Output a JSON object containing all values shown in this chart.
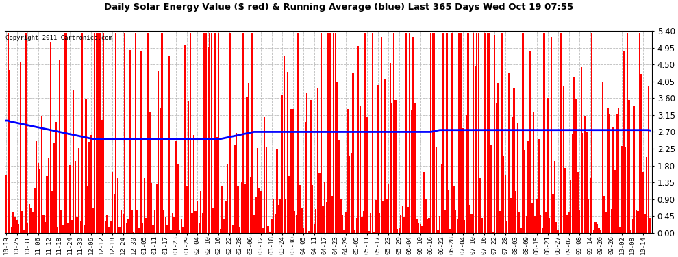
{
  "title": "Daily Solar Energy Value ($ red) & Running Average (blue) Last 365 Days Wed Oct 19 07:55",
  "copyright": "Copyright 2011 Cartronics.com",
  "bar_color": "#ff0000",
  "avg_color": "#0000ff",
  "background_color": "#ffffff",
  "plot_bg_color": "#ffffff",
  "ylim": [
    0.0,
    5.4
  ],
  "yticks": [
    0.0,
    0.45,
    0.9,
    1.35,
    1.8,
    2.25,
    2.7,
    3.15,
    3.6,
    4.05,
    4.5,
    4.95,
    5.4
  ],
  "n_days": 365,
  "seed": 42,
  "x_labels": [
    "10-19",
    "10-25",
    "10-31",
    "11-06",
    "11-12",
    "11-18",
    "11-24",
    "11-30",
    "12-06",
    "12-12",
    "12-18",
    "12-24",
    "12-30",
    "01-05",
    "01-11",
    "01-17",
    "01-23",
    "01-29",
    "02-04",
    "02-10",
    "02-16",
    "02-22",
    "02-28",
    "03-06",
    "03-12",
    "03-18",
    "03-24",
    "03-30",
    "04-05",
    "04-11",
    "04-17",
    "04-23",
    "04-29",
    "05-05",
    "05-11",
    "05-17",
    "05-23",
    "05-29",
    "06-04",
    "06-10",
    "06-16",
    "06-22",
    "06-28",
    "07-04",
    "07-10",
    "07-16",
    "07-22",
    "07-28",
    "08-03",
    "08-09",
    "08-15",
    "08-21",
    "08-27",
    "09-02",
    "09-08",
    "09-14",
    "09-20",
    "09-26",
    "10-02",
    "10-08",
    "10-14"
  ],
  "avg_values": [
    3.0,
    3.0,
    2.98,
    2.97,
    2.96,
    2.95,
    2.94,
    2.93,
    2.92,
    2.91,
    2.9,
    2.89,
    2.88,
    2.87,
    2.86,
    2.85,
    2.84,
    2.83,
    2.82,
    2.81,
    2.8,
    2.79,
    2.78,
    2.77,
    2.76,
    2.75,
    2.74,
    2.73,
    2.72,
    2.71,
    2.7,
    2.69,
    2.68,
    2.67,
    2.66,
    2.65,
    2.64,
    2.63,
    2.62,
    2.61,
    2.6,
    2.59,
    2.58,
    2.57,
    2.56,
    2.55,
    2.54,
    2.53,
    2.52,
    2.51,
    2.5,
    2.5,
    2.5,
    2.5,
    2.5,
    2.5,
    2.5,
    2.5,
    2.5,
    2.5,
    2.5,
    2.5,
    2.5,
    2.5,
    2.5,
    2.5,
    2.5,
    2.5,
    2.5,
    2.5,
    2.5,
    2.5,
    2.5,
    2.5,
    2.5,
    2.5,
    2.5,
    2.5,
    2.5,
    2.5,
    2.5,
    2.5,
    2.5,
    2.5,
    2.5,
    2.5,
    2.5,
    2.5,
    2.5,
    2.5,
    2.5,
    2.5,
    2.5,
    2.5,
    2.5,
    2.5,
    2.5,
    2.5,
    2.5,
    2.5,
    2.5,
    2.5,
    2.5,
    2.5,
    2.5,
    2.5,
    2.5,
    2.5,
    2.5,
    2.5,
    2.5,
    2.5,
    2.5,
    2.5,
    2.5,
    2.5,
    2.5,
    2.5,
    2.5,
    2.5,
    2.5,
    2.51,
    2.52,
    2.53,
    2.54,
    2.55,
    2.56,
    2.57,
    2.58,
    2.59,
    2.6,
    2.61,
    2.62,
    2.63,
    2.64,
    2.65,
    2.66,
    2.67,
    2.68,
    2.69,
    2.7,
    2.7,
    2.7,
    2.7,
    2.7,
    2.7,
    2.7,
    2.7,
    2.7,
    2.7,
    2.7,
    2.7,
    2.7,
    2.7,
    2.7,
    2.7,
    2.7,
    2.7,
    2.7,
    2.7,
    2.7,
    2.7,
    2.7,
    2.7,
    2.7,
    2.7,
    2.7,
    2.7,
    2.7,
    2.7,
    2.7,
    2.7,
    2.7,
    2.7,
    2.7,
    2.7,
    2.7,
    2.7,
    2.7,
    2.7,
    2.7,
    2.7,
    2.7,
    2.7,
    2.7,
    2.7,
    2.7,
    2.7,
    2.7,
    2.7,
    2.7,
    2.7,
    2.7,
    2.7,
    2.7,
    2.7,
    2.7,
    2.7,
    2.7,
    2.7,
    2.7,
    2.7,
    2.7,
    2.7,
    2.7,
    2.7,
    2.7,
    2.7,
    2.7,
    2.7,
    2.7,
    2.7,
    2.7,
    2.7,
    2.7,
    2.7,
    2.7,
    2.7,
    2.7,
    2.7,
    2.7,
    2.7,
    2.7,
    2.7,
    2.7,
    2.7,
    2.7,
    2.7,
    2.7,
    2.7,
    2.7,
    2.7,
    2.7,
    2.7,
    2.7,
    2.7,
    2.7,
    2.7,
    2.7,
    2.7,
    2.7,
    2.71,
    2.72,
    2.73,
    2.74,
    2.75,
    2.75,
    2.75,
    2.75,
    2.75,
    2.75,
    2.75,
    2.75,
    2.75,
    2.75,
    2.75,
    2.75,
    2.75,
    2.75,
    2.75,
    2.75,
    2.75,
    2.75,
    2.75,
    2.75,
    2.75,
    2.75,
    2.75,
    2.75,
    2.75,
    2.75,
    2.75,
    2.75,
    2.75,
    2.75,
    2.75,
    2.75,
    2.75,
    2.75,
    2.75,
    2.75,
    2.75,
    2.75,
    2.75,
    2.75,
    2.75,
    2.75,
    2.75,
    2.75,
    2.75,
    2.75,
    2.75,
    2.75,
    2.75,
    2.75,
    2.75,
    2.75,
    2.75,
    2.75,
    2.75,
    2.75,
    2.75,
    2.75,
    2.75,
    2.75,
    2.75,
    2.75,
    2.75,
    2.75,
    2.75,
    2.75,
    2.75,
    2.75,
    2.75,
    2.75,
    2.75,
    2.75,
    2.75,
    2.75,
    2.75,
    2.75,
    2.75,
    2.75,
    2.75,
    2.75,
    2.75,
    2.75,
    2.75,
    2.75,
    2.75,
    2.75,
    2.75,
    2.75,
    2.75,
    2.75,
    2.75,
    2.75,
    2.75,
    2.75,
    2.75,
    2.75,
    2.75,
    2.75,
    2.75,
    2.75,
    2.75,
    2.75,
    2.75,
    2.75,
    2.75,
    2.75,
    2.75,
    2.75,
    2.75,
    2.75,
    2.75,
    2.75,
    2.75,
    2.75,
    2.75,
    2.75,
    2.75,
    2.75,
    2.75,
    2.74
  ]
}
